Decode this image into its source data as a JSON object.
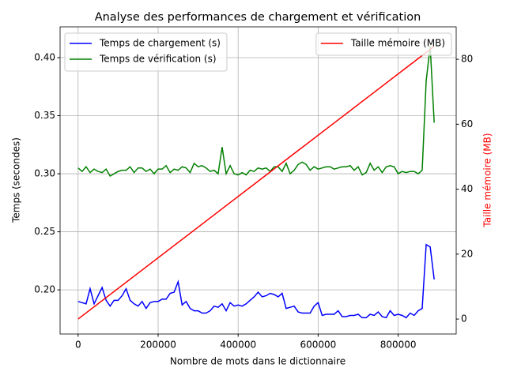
{
  "chart_data": {
    "type": "line",
    "title": "Analyse des performances de chargement et vérification",
    "xlabel": "Nombre de mots dans le dictionnaire",
    "ylabel": "Temps (secondes)",
    "y2label": "Taille mémoire (MB)",
    "y2label_color": "#ff0000",
    "x": [
      0,
      10000,
      20000,
      30000,
      40000,
      50000,
      60000,
      70000,
      80000,
      90000,
      100000,
      110000,
      120000,
      130000,
      140000,
      150000,
      160000,
      170000,
      180000,
      190000,
      200000,
      210000,
      220000,
      230000,
      240000,
      250000,
      260000,
      270000,
      280000,
      290000,
      300000,
      310000,
      320000,
      330000,
      340000,
      350000,
      360000,
      370000,
      380000,
      390000,
      400000,
      410000,
      420000,
      430000,
      440000,
      450000,
      460000,
      470000,
      480000,
      490000,
      500000,
      510000,
      520000,
      530000,
      540000,
      550000,
      560000,
      570000,
      580000,
      590000,
      600000,
      610000,
      620000,
      630000,
      640000,
      650000,
      660000,
      670000,
      680000,
      690000,
      700000,
      710000,
      720000,
      730000,
      740000,
      750000,
      760000,
      770000,
      780000,
      790000,
      800000,
      810000,
      820000,
      830000,
      840000,
      850000,
      860000,
      870000,
      880000,
      890000
    ],
    "series": [
      {
        "name": "Temps de chargement (s)",
        "color": "#0000ff",
        "values": [
          0.19,
          0.189,
          0.188,
          0.201,
          0.188,
          0.195,
          0.202,
          0.191,
          0.186,
          0.191,
          0.191,
          0.195,
          0.201,
          0.191,
          0.188,
          0.186,
          0.19,
          0.184,
          0.189,
          0.19,
          0.19,
          0.192,
          0.192,
          0.197,
          0.198,
          0.207,
          0.187,
          0.19,
          0.184,
          0.182,
          0.182,
          0.18,
          0.18,
          0.182,
          0.186,
          0.185,
          0.188,
          0.182,
          0.189,
          0.186,
          0.187,
          0.186,
          0.188,
          0.191,
          0.194,
          0.198,
          0.194,
          0.195,
          0.197,
          0.196,
          0.194,
          0.197,
          0.184,
          0.185,
          0.186,
          0.181,
          0.18,
          0.18,
          0.18,
          0.186,
          0.189,
          0.178,
          0.179,
          0.179,
          0.179,
          0.182,
          0.177,
          0.177,
          0.178,
          0.178,
          0.179,
          0.176,
          0.176,
          0.179,
          0.178,
          0.181,
          0.177,
          0.176,
          0.182,
          0.178,
          0.179,
          0.178,
          0.176,
          0.18,
          0.178,
          0.182,
          0.184,
          0.239,
          0.237,
          0.209
        ]
      },
      {
        "name": "Temps de vérification (s)",
        "color": "#008000",
        "values": [
          0.305,
          0.302,
          0.306,
          0.301,
          0.304,
          0.302,
          0.301,
          0.304,
          0.298,
          0.3,
          0.302,
          0.303,
          0.303,
          0.306,
          0.301,
          0.305,
          0.305,
          0.302,
          0.304,
          0.3,
          0.304,
          0.304,
          0.307,
          0.301,
          0.304,
          0.303,
          0.306,
          0.305,
          0.301,
          0.309,
          0.306,
          0.307,
          0.305,
          0.302,
          0.303,
          0.3,
          0.323,
          0.3,
          0.307,
          0.3,
          0.299,
          0.301,
          0.299,
          0.303,
          0.302,
          0.305,
          0.304,
          0.305,
          0.302,
          0.306,
          0.306,
          0.302,
          0.309,
          0.3,
          0.303,
          0.308,
          0.31,
          0.308,
          0.303,
          0.306,
          0.304,
          0.305,
          0.306,
          0.306,
          0.304,
          0.305,
          0.306,
          0.306,
          0.307,
          0.303,
          0.306,
          0.299,
          0.301,
          0.309,
          0.303,
          0.306,
          0.301,
          0.306,
          0.307,
          0.306,
          0.3,
          0.302,
          0.301,
          0.302,
          0.302,
          0.3,
          0.303,
          0.38,
          0.41,
          0.344
        ]
      },
      {
        "name": "Taille mémoire (MB)",
        "color": "#ff0000",
        "axis": "y2",
        "x": [
          0,
          890000
        ],
        "values": [
          0,
          84
        ]
      }
    ],
    "xlim": [
      -45000,
      945000
    ],
    "xticks": [
      0,
      200000,
      400000,
      600000,
      800000
    ],
    "ylim": [
      0.162,
      0.4265
    ],
    "yticks": [
      {
        "value": 0.2,
        "label": "0.20"
      },
      0.25,
      {
        "value": 0.3,
        "label": "0.30"
      },
      0.35,
      {
        "value": 0.4,
        "label": "0.40"
      }
    ],
    "y2lim": [
      -4.6,
      90
    ],
    "y2ticks": [
      0,
      20,
      40,
      60,
      80
    ],
    "grid": true,
    "legend": "upper left",
    "y2legend": "upper right"
  }
}
